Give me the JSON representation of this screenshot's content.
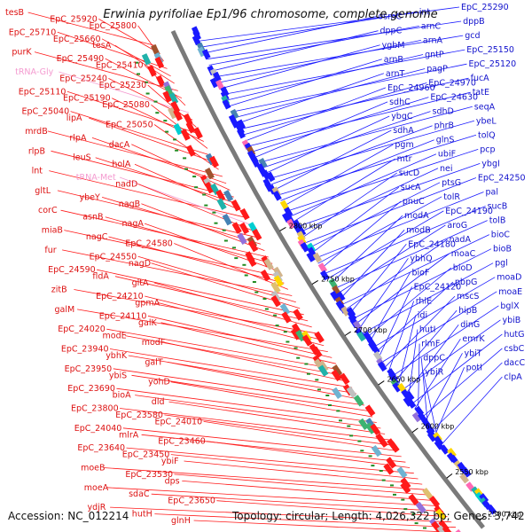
{
  "title": "Erwinia pyrifoliae Ep1/96 chromosome, complete genome",
  "footer": {
    "accession": "Accession: NC_012214",
    "topology": "Topology: circular; Length: 4,026,322 bp; Genes: 3,742"
  },
  "ticks": [
    "2800 kbp",
    "2750 kbp",
    "2700 kbp",
    "2650 kbp",
    "2600 kbp",
    "2550 kbp",
    "2500 kbp"
  ],
  "colors": {
    "forward": "#ff1a1a",
    "reverse": "#1a1aff",
    "backbone": "#7a7a7a",
    "rna": "#f49bd0",
    "tick": "#228b22"
  },
  "genes_left": [
    "tesB",
    "EpC_25920",
    "EpC_25800",
    "EpC_25710",
    "EpC_25660",
    "tesA",
    "purK",
    "EpC_25490",
    "EpC_25410",
    "tRNA-Gly",
    "EpC_25240",
    "EpC_25230",
    "EpC_25110",
    "EpC_25190",
    "EpC_25080",
    "EpC_25040",
    "lipA",
    "EpC_25050",
    "mrdB",
    "rlpA",
    "dacA",
    "rlpB",
    "leuS",
    "holA",
    "lnt",
    "tRNA-Met",
    "nadD",
    "gltL",
    "ybeY",
    "nagB",
    "corC",
    "asnB",
    "nagA",
    "miaB",
    "nagC",
    "EpC_24580",
    "fur",
    "EpC_24550",
    "nagD",
    "EpC_24590",
    "fldA",
    "gltA",
    "zitB",
    "EpC_24210",
    "gpmA",
    "galM",
    "EpC_24110",
    "galK",
    "EpC_24020",
    "modE",
    "modF",
    "EpC_23940",
    "ybhK",
    "galT",
    "EpC_23950",
    "ybiS",
    "yohD",
    "EpC_23690",
    "bioA",
    "dld",
    "EpC_23800",
    "EpC_23580",
    "EpC_24010",
    "EpC_24040",
    "mlrA",
    "EpC_23460",
    "EpC_23640",
    "EpC_23450",
    "ybiF",
    "moeB",
    "EpC_23530",
    "dps",
    "moeA",
    "sdaC",
    "EpC_23650",
    "ydjR",
    "hutH",
    "glnH"
  ],
  "genes_right": [
    "EpC_25290",
    "int",
    "osmC",
    "dppB",
    "arnC",
    "dppC",
    "gcd",
    "arnA",
    "ygbM",
    "EpC_25150",
    "gntP",
    "arnB",
    "EpC_25120",
    "pagP",
    "arnT",
    "fucA",
    "EpC_24970",
    "EpC_24960",
    "tatE",
    "EpC_24630",
    "sdhC",
    "seqA",
    "sdhD",
    "ybgC",
    "ybeL",
    "phrB",
    "sdhA",
    "tolQ",
    "glnS",
    "pgm",
    "pcp",
    "ubiF",
    "mtr",
    "ybgI",
    "nei",
    "sucD",
    "EpC_24250",
    "ptsG",
    "sucA",
    "pal",
    "tolR",
    "pnuC",
    "sucB",
    "EpC_24190",
    "modA",
    "tolB",
    "aroG",
    "modB",
    "bioC",
    "nadA",
    "EpC_24180",
    "bioB",
    "moaC",
    "ybhQ",
    "pgl",
    "bioD",
    "bioF",
    "moaD",
    "pbpG",
    "EpC_24120",
    "moaE",
    "mscS",
    "rhlE",
    "bglX",
    "hipB",
    "idi",
    "ybiB",
    "dinG",
    "hutI",
    "hutG",
    "emrK",
    "rlmF",
    "csbC",
    "ybiT",
    "dppC",
    "dacC",
    "potI",
    "ybjR",
    "clpA"
  ]
}
